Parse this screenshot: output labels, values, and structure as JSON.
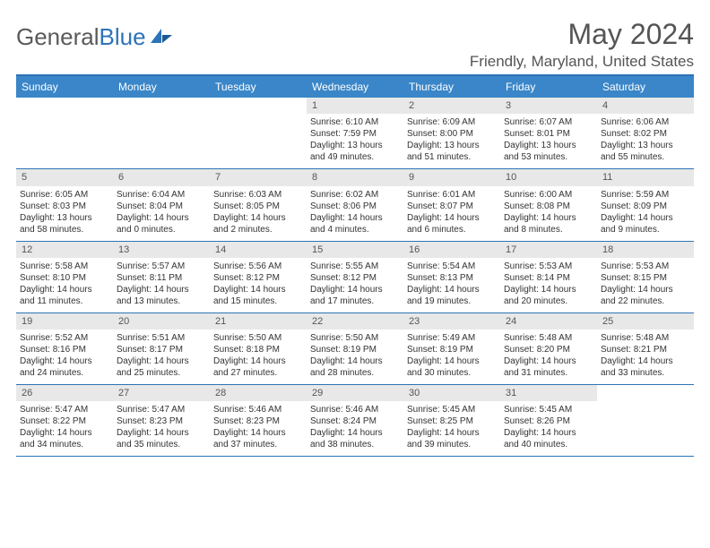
{
  "logo": {
    "text1": "General",
    "text2": "Blue"
  },
  "title": "May 2024",
  "location": "Friendly, Maryland, United States",
  "day_names": [
    "Sunday",
    "Monday",
    "Tuesday",
    "Wednesday",
    "Thursday",
    "Friday",
    "Saturday"
  ],
  "colors": {
    "header_bg": "#3a86c8",
    "border": "#2d73b8",
    "daynum_bg": "#e8e8e8",
    "text": "#333333"
  },
  "weeks": [
    [
      {
        "empty": true
      },
      {
        "empty": true
      },
      {
        "empty": true
      },
      {
        "day": "1",
        "sunrise": "Sunrise: 6:10 AM",
        "sunset": "Sunset: 7:59 PM",
        "daylight1": "Daylight: 13 hours",
        "daylight2": "and 49 minutes."
      },
      {
        "day": "2",
        "sunrise": "Sunrise: 6:09 AM",
        "sunset": "Sunset: 8:00 PM",
        "daylight1": "Daylight: 13 hours",
        "daylight2": "and 51 minutes."
      },
      {
        "day": "3",
        "sunrise": "Sunrise: 6:07 AM",
        "sunset": "Sunset: 8:01 PM",
        "daylight1": "Daylight: 13 hours",
        "daylight2": "and 53 minutes."
      },
      {
        "day": "4",
        "sunrise": "Sunrise: 6:06 AM",
        "sunset": "Sunset: 8:02 PM",
        "daylight1": "Daylight: 13 hours",
        "daylight2": "and 55 minutes."
      }
    ],
    [
      {
        "day": "5",
        "sunrise": "Sunrise: 6:05 AM",
        "sunset": "Sunset: 8:03 PM",
        "daylight1": "Daylight: 13 hours",
        "daylight2": "and 58 minutes."
      },
      {
        "day": "6",
        "sunrise": "Sunrise: 6:04 AM",
        "sunset": "Sunset: 8:04 PM",
        "daylight1": "Daylight: 14 hours",
        "daylight2": "and 0 minutes."
      },
      {
        "day": "7",
        "sunrise": "Sunrise: 6:03 AM",
        "sunset": "Sunset: 8:05 PM",
        "daylight1": "Daylight: 14 hours",
        "daylight2": "and 2 minutes."
      },
      {
        "day": "8",
        "sunrise": "Sunrise: 6:02 AM",
        "sunset": "Sunset: 8:06 PM",
        "daylight1": "Daylight: 14 hours",
        "daylight2": "and 4 minutes."
      },
      {
        "day": "9",
        "sunrise": "Sunrise: 6:01 AM",
        "sunset": "Sunset: 8:07 PM",
        "daylight1": "Daylight: 14 hours",
        "daylight2": "and 6 minutes."
      },
      {
        "day": "10",
        "sunrise": "Sunrise: 6:00 AM",
        "sunset": "Sunset: 8:08 PM",
        "daylight1": "Daylight: 14 hours",
        "daylight2": "and 8 minutes."
      },
      {
        "day": "11",
        "sunrise": "Sunrise: 5:59 AM",
        "sunset": "Sunset: 8:09 PM",
        "daylight1": "Daylight: 14 hours",
        "daylight2": "and 9 minutes."
      }
    ],
    [
      {
        "day": "12",
        "sunrise": "Sunrise: 5:58 AM",
        "sunset": "Sunset: 8:10 PM",
        "daylight1": "Daylight: 14 hours",
        "daylight2": "and 11 minutes."
      },
      {
        "day": "13",
        "sunrise": "Sunrise: 5:57 AM",
        "sunset": "Sunset: 8:11 PM",
        "daylight1": "Daylight: 14 hours",
        "daylight2": "and 13 minutes."
      },
      {
        "day": "14",
        "sunrise": "Sunrise: 5:56 AM",
        "sunset": "Sunset: 8:12 PM",
        "daylight1": "Daylight: 14 hours",
        "daylight2": "and 15 minutes."
      },
      {
        "day": "15",
        "sunrise": "Sunrise: 5:55 AM",
        "sunset": "Sunset: 8:12 PM",
        "daylight1": "Daylight: 14 hours",
        "daylight2": "and 17 minutes."
      },
      {
        "day": "16",
        "sunrise": "Sunrise: 5:54 AM",
        "sunset": "Sunset: 8:13 PM",
        "daylight1": "Daylight: 14 hours",
        "daylight2": "and 19 minutes."
      },
      {
        "day": "17",
        "sunrise": "Sunrise: 5:53 AM",
        "sunset": "Sunset: 8:14 PM",
        "daylight1": "Daylight: 14 hours",
        "daylight2": "and 20 minutes."
      },
      {
        "day": "18",
        "sunrise": "Sunrise: 5:53 AM",
        "sunset": "Sunset: 8:15 PM",
        "daylight1": "Daylight: 14 hours",
        "daylight2": "and 22 minutes."
      }
    ],
    [
      {
        "day": "19",
        "sunrise": "Sunrise: 5:52 AM",
        "sunset": "Sunset: 8:16 PM",
        "daylight1": "Daylight: 14 hours",
        "daylight2": "and 24 minutes."
      },
      {
        "day": "20",
        "sunrise": "Sunrise: 5:51 AM",
        "sunset": "Sunset: 8:17 PM",
        "daylight1": "Daylight: 14 hours",
        "daylight2": "and 25 minutes."
      },
      {
        "day": "21",
        "sunrise": "Sunrise: 5:50 AM",
        "sunset": "Sunset: 8:18 PM",
        "daylight1": "Daylight: 14 hours",
        "daylight2": "and 27 minutes."
      },
      {
        "day": "22",
        "sunrise": "Sunrise: 5:50 AM",
        "sunset": "Sunset: 8:19 PM",
        "daylight1": "Daylight: 14 hours",
        "daylight2": "and 28 minutes."
      },
      {
        "day": "23",
        "sunrise": "Sunrise: 5:49 AM",
        "sunset": "Sunset: 8:19 PM",
        "daylight1": "Daylight: 14 hours",
        "daylight2": "and 30 minutes."
      },
      {
        "day": "24",
        "sunrise": "Sunrise: 5:48 AM",
        "sunset": "Sunset: 8:20 PM",
        "daylight1": "Daylight: 14 hours",
        "daylight2": "and 31 minutes."
      },
      {
        "day": "25",
        "sunrise": "Sunrise: 5:48 AM",
        "sunset": "Sunset: 8:21 PM",
        "daylight1": "Daylight: 14 hours",
        "daylight2": "and 33 minutes."
      }
    ],
    [
      {
        "day": "26",
        "sunrise": "Sunrise: 5:47 AM",
        "sunset": "Sunset: 8:22 PM",
        "daylight1": "Daylight: 14 hours",
        "daylight2": "and 34 minutes."
      },
      {
        "day": "27",
        "sunrise": "Sunrise: 5:47 AM",
        "sunset": "Sunset: 8:23 PM",
        "daylight1": "Daylight: 14 hours",
        "daylight2": "and 35 minutes."
      },
      {
        "day": "28",
        "sunrise": "Sunrise: 5:46 AM",
        "sunset": "Sunset: 8:23 PM",
        "daylight1": "Daylight: 14 hours",
        "daylight2": "and 37 minutes."
      },
      {
        "day": "29",
        "sunrise": "Sunrise: 5:46 AM",
        "sunset": "Sunset: 8:24 PM",
        "daylight1": "Daylight: 14 hours",
        "daylight2": "and 38 minutes."
      },
      {
        "day": "30",
        "sunrise": "Sunrise: 5:45 AM",
        "sunset": "Sunset: 8:25 PM",
        "daylight1": "Daylight: 14 hours",
        "daylight2": "and 39 minutes."
      },
      {
        "day": "31",
        "sunrise": "Sunrise: 5:45 AM",
        "sunset": "Sunset: 8:26 PM",
        "daylight1": "Daylight: 14 hours",
        "daylight2": "and 40 minutes."
      },
      {
        "empty": true
      }
    ]
  ]
}
